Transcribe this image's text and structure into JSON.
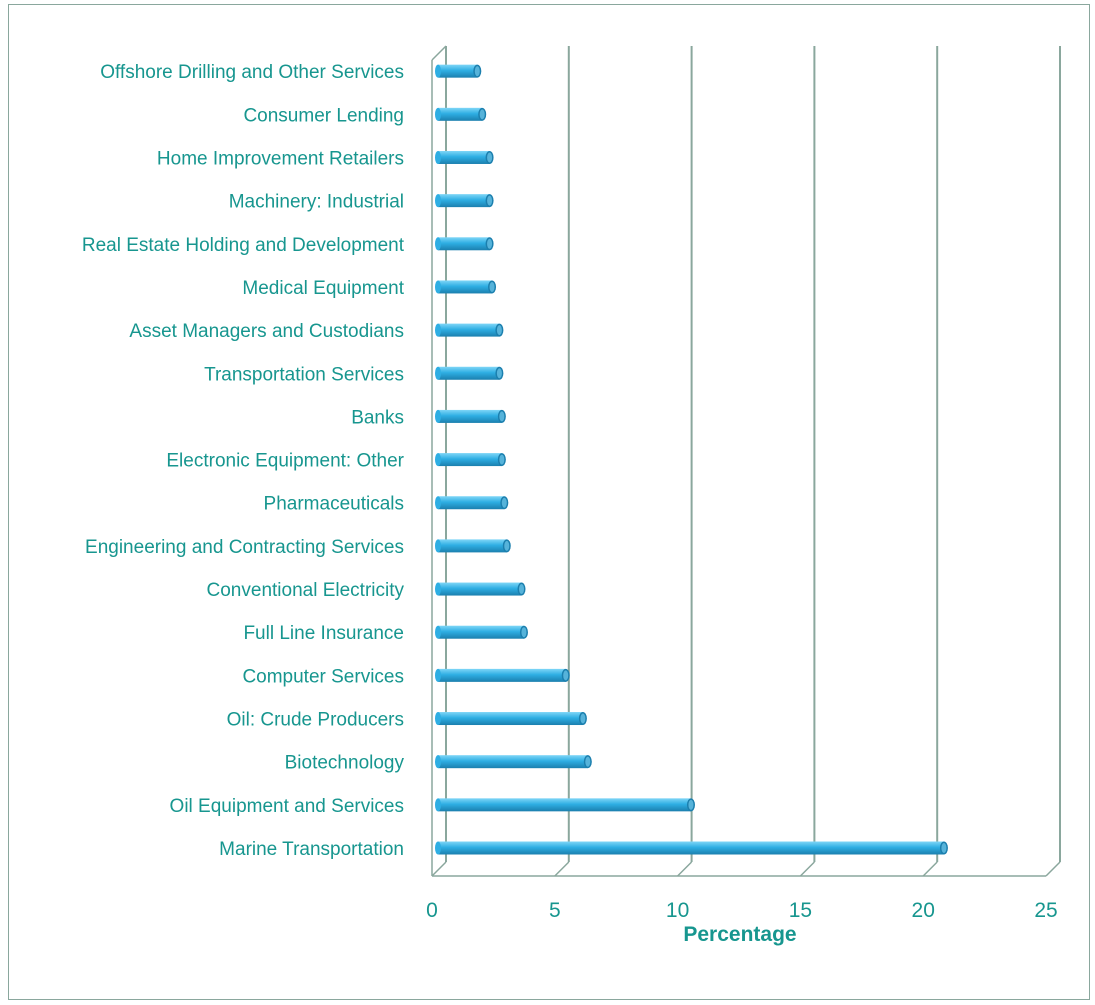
{
  "chart_data": {
    "type": "bar",
    "orientation": "horizontal",
    "title": "",
    "xlabel": "Percentage",
    "ylabel": "",
    "xlim": [
      0,
      25
    ],
    "xticks": [
      "0",
      "5",
      "10",
      "15",
      "20",
      "25"
    ],
    "grid": true,
    "legend": "none",
    "categories": [
      "Marine Transportation",
      "Oil Equipment and Services",
      "Biotechnology",
      "Oil: Crude Producers",
      "Computer Services",
      "Full Line Insurance",
      "Conventional Electricity",
      "Engineering and Contracting Services",
      "Pharmaceuticals",
      "Electronic Equipment: Other",
      "Banks",
      "Transportation Services",
      "Asset Managers and Custodians",
      "Medical Equipment",
      "Real Estate Holding and Development",
      "Machinery: Industrial",
      "Home Improvement Retailers",
      "Consumer Lending",
      "Offshore Drilling and Other Services"
    ],
    "values": [
      20.6,
      10.3,
      6.1,
      5.9,
      5.2,
      3.5,
      3.4,
      2.8,
      2.7,
      2.6,
      2.6,
      2.5,
      2.5,
      2.2,
      2.1,
      2.1,
      2.1,
      1.8,
      1.6
    ],
    "colors": {
      "bar": "#2eaee3",
      "bar_light": "#7fd6f7",
      "bar_dark": "#1b7fae",
      "text": "#17968f",
      "grid": "#8aa79d"
    }
  }
}
